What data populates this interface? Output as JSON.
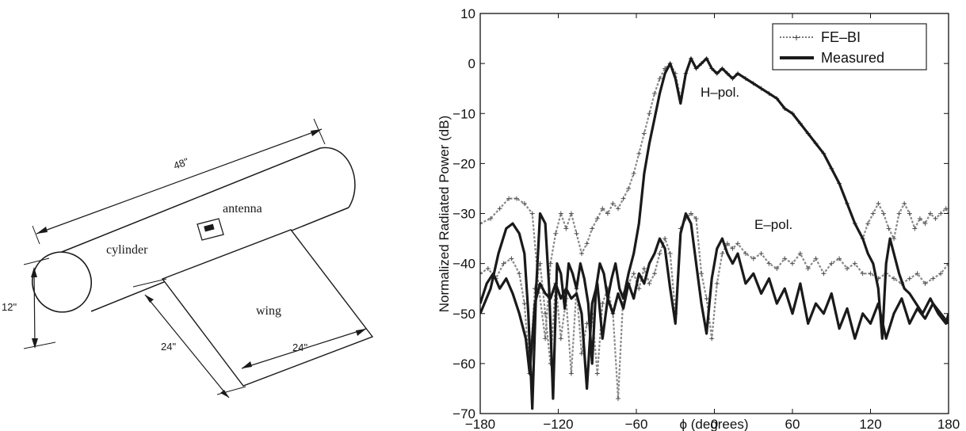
{
  "diagram": {
    "labels": {
      "length": "48\"",
      "antenna": "antenna",
      "cylinder": "cylinder",
      "diameter": "12\"",
      "wing": "wing",
      "wing_depth": "24\"",
      "wing_span": "24\""
    }
  },
  "chart_data": {
    "type": "line",
    "xlabel": "ϕ (degrees)",
    "ylabel": "Normalized Radiated Power (dB)",
    "xlim": [
      -180,
      180
    ],
    "ylim": [
      -70,
      10
    ],
    "xticks": [
      -180,
      -120,
      -60,
      0,
      60,
      120,
      180
    ],
    "yticks": [
      -70,
      -60,
      -50,
      -40,
      -30,
      -20,
      -10,
      0,
      10
    ],
    "xtick_labels": [
      "−180",
      "−120",
      "−60",
      "0",
      "60",
      "120",
      "180"
    ],
    "ytick_labels": [
      "−70",
      "−60",
      "−50",
      "−40",
      "−30",
      "−20",
      "−10",
      "0",
      "10"
    ],
    "grid": false,
    "legend_position": "top-right",
    "legend": [
      "FE–BI",
      "Measured"
    ],
    "annotations": [
      {
        "text": "H–pol.",
        "x": -12,
        "y": -8
      },
      {
        "text": "E–pol.",
        "x": 95,
        "y": -35
      }
    ],
    "series": [
      {
        "name": "FE–BI",
        "curves": [
          {
            "label": "H-pol",
            "x": [
              -180,
              -172,
              -165,
              -158,
              -152,
              -146,
              -140,
              -135,
              -130,
              -126,
              -122,
              -118,
              -114,
              -110,
              -106,
              -102,
              -98,
              -94,
              -90,
              -86,
              -82,
              -78,
              -74,
              -70,
              -66,
              -62,
              -58,
              -54,
              -50,
              -46,
              -42,
              -38,
              -34,
              -30,
              -26,
              -22,
              -18,
              -14,
              -10,
              -6,
              -2,
              2,
              6,
              10,
              14,
              18,
              24,
              30,
              36,
              42,
              48,
              54,
              60,
              66,
              72,
              78,
              84,
              90,
              96,
              102,
              108,
              114,
              118,
              122,
              126,
              130,
              134,
              138,
              142,
              146,
              150,
              154,
              158,
              162,
              166,
              170,
              174,
              178,
              180
            ],
            "y": [
              -32,
              -31,
              -29,
              -27,
              -27,
              -28,
              -30,
              -45,
              -55,
              -40,
              -34,
              -30,
              -33,
              -30,
              -34,
              -38,
              -36,
              -33,
              -31,
              -29,
              -30,
              -28,
              -29,
              -27,
              -25,
              -22,
              -18,
              -14,
              -10,
              -6,
              -3,
              -1,
              0,
              -2,
              -7,
              -2,
              1,
              -1,
              0,
              1,
              -1,
              -2,
              -1,
              -2,
              -3,
              -2,
              -3,
              -4,
              -5,
              -6,
              -7,
              -9,
              -10,
              -12,
              -14,
              -16,
              -18,
              -21,
              -24,
              -28,
              -32,
              -35,
              -32,
              -30,
              -28,
              -30,
              -33,
              -35,
              -30,
              -28,
              -30,
              -33,
              -31,
              -32,
              -30,
              -31,
              -30,
              -29,
              -30
            ]
          },
          {
            "label": "E-pol",
            "x": [
              -180,
              -174,
              -168,
              -162,
              -156,
              -150,
              -146,
              -142,
              -138,
              -134,
              -130,
              -126,
              -122,
              -118,
              -114,
              -110,
              -106,
              -102,
              -98,
              -94,
              -90,
              -86,
              -82,
              -78,
              -74,
              -70,
              -66,
              -62,
              -58,
              -54,
              -50,
              -46,
              -42,
              -38,
              -34,
              -30,
              -26,
              -22,
              -18,
              -14,
              -10,
              -6,
              -2,
              2,
              6,
              10,
              14,
              18,
              24,
              30,
              36,
              42,
              48,
              54,
              60,
              66,
              72,
              78,
              84,
              90,
              96,
              102,
              108,
              114,
              120,
              126,
              132,
              138,
              144,
              150,
              156,
              162,
              168,
              174,
              180
            ],
            "y": [
              -42,
              -41,
              -43,
              -40,
              -39,
              -42,
              -48,
              -62,
              -45,
              -40,
              -50,
              -60,
              -44,
              -55,
              -47,
              -62,
              -45,
              -58,
              -52,
              -50,
              -62,
              -48,
              -45,
              -50,
              -67,
              -46,
              -44,
              -42,
              -45,
              -41,
              -44,
              -42,
              -38,
              -35,
              -38,
              -50,
              -33,
              -31,
              -30,
              -31,
              -42,
              -47,
              -55,
              -44,
              -38,
              -36,
              -37,
              -36,
              -38,
              -39,
              -38,
              -40,
              -41,
              -39,
              -40,
              -38,
              -41,
              -39,
              -42,
              -40,
              -39,
              -41,
              -40,
              -42,
              -42,
              -43,
              -42,
              -43,
              -44,
              -43,
              -42,
              -44,
              -43,
              -42,
              -40
            ]
          }
        ]
      },
      {
        "name": "Measured",
        "curves": [
          {
            "label": "H-pol",
            "x": [
              -180,
              -172,
              -166,
              -160,
              -155,
              -150,
              -146,
              -143,
              -140,
              -137,
              -134,
              -130,
              -127,
              -124,
              -121,
              -118,
              -115,
              -112,
              -109,
              -106,
              -103,
              -100,
              -97,
              -94,
              -91,
              -88,
              -85,
              -82,
              -79,
              -76,
              -73,
              -70,
              -66,
              -62,
              -58,
              -54,
              -50,
              -46,
              -42,
              -38,
              -34,
              -30,
              -26,
              -22,
              -18,
              -14,
              -10,
              -6,
              -2,
              2,
              6,
              10,
              14,
              18,
              24,
              30,
              36,
              42,
              48,
              54,
              60,
              66,
              72,
              78,
              84,
              90,
              96,
              102,
              108,
              114,
              118,
              122,
              126,
              129,
              132,
              135,
              138,
              142,
              146,
              150,
              155,
              160,
              166,
              172,
              178,
              180
            ],
            "y": [
              -50,
              -45,
              -38,
              -33,
              -32,
              -34,
              -38,
              -50,
              -69,
              -45,
              -30,
              -32,
              -45,
              -67,
              -40,
              -42,
              -49,
              -40,
              -42,
              -45,
              -40,
              -43,
              -48,
              -60,
              -45,
              -40,
              -42,
              -47,
              -43,
              -40,
              -45,
              -47,
              -42,
              -38,
              -32,
              -22,
              -16,
              -11,
              -6,
              -2,
              0,
              -3,
              -8,
              -2,
              1,
              -1,
              0,
              1,
              -1,
              -2,
              -1,
              -2,
              -3,
              -2,
              -3,
              -4,
              -5,
              -6,
              -7,
              -9,
              -10,
              -12,
              -14,
              -16,
              -18,
              -21,
              -24,
              -28,
              -32,
              -35,
              -38,
              -40,
              -45,
              -55,
              -40,
              -35,
              -38,
              -42,
              -45,
              -46,
              -48,
              -50,
              -47,
              -50,
              -52,
              -50
            ]
          },
          {
            "label": "E-pol",
            "x": [
              -180,
              -175,
              -170,
              -165,
              -160,
              -155,
              -150,
              -145,
              -142,
              -138,
              -134,
              -130,
              -126,
              -122,
              -118,
              -114,
              -110,
              -106,
              -102,
              -98,
              -94,
              -90,
              -86,
              -82,
              -78,
              -74,
              -70,
              -66,
              -62,
              -58,
              -54,
              -50,
              -46,
              -42,
              -38,
              -34,
              -30,
              -26,
              -22,
              -18,
              -14,
              -10,
              -6,
              -2,
              2,
              6,
              10,
              14,
              18,
              24,
              30,
              36,
              42,
              48,
              54,
              60,
              66,
              72,
              78,
              84,
              90,
              96,
              102,
              108,
              114,
              120,
              126,
              132,
              138,
              144,
              150,
              156,
              162,
              168,
              174,
              180
            ],
            "y": [
              -48,
              -44,
              -42,
              -45,
              -43,
              -46,
              -50,
              -55,
              -62,
              -48,
              -44,
              -46,
              -47,
              -44,
              -47,
              -45,
              -47,
              -46,
              -50,
              -65,
              -48,
              -44,
              -55,
              -47,
              -50,
              -46,
              -49,
              -44,
              -47,
              -42,
              -44,
              -40,
              -38,
              -35,
              -37,
              -45,
              -52,
              -34,
              -30,
              -32,
              -40,
              -48,
              -54,
              -43,
              -37,
              -35,
              -38,
              -40,
              -38,
              -44,
              -42,
              -46,
              -43,
              -48,
              -45,
              -50,
              -44,
              -52,
              -48,
              -50,
              -46,
              -53,
              -49,
              -55,
              -50,
              -52,
              -48,
              -55,
              -50,
              -47,
              -52,
              -49,
              -51,
              -48,
              -50,
              -52
            ]
          }
        ]
      }
    ]
  }
}
